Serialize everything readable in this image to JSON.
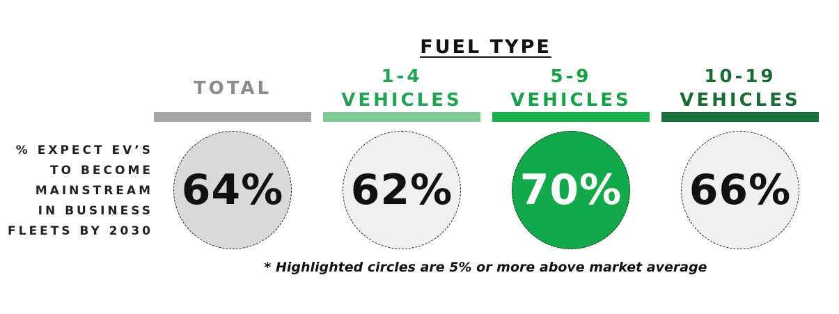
{
  "chart_data": {
    "type": "table",
    "title": "FUEL TYPE",
    "row_label": [
      "% EXPECT EV’S",
      "TO BECOME",
      "MAINSTREAM",
      "IN BUSINESS",
      "FLEETS BY 2030"
    ],
    "categories": [
      {
        "lines": [
          "TOTAL"
        ],
        "value": 64,
        "display": "64%",
        "highlighted": false,
        "color": "#a6a6a6",
        "text_color": "#8c8c8c",
        "circle_fill": "#d9d9d9",
        "value_color": "#111111"
      },
      {
        "lines": [
          "1-4",
          "VEHICLES"
        ],
        "value": 62,
        "display": "62%",
        "highlighted": false,
        "color": "#7dcc94",
        "text_color": "#22a352",
        "circle_fill": "#f0f0f0",
        "value_color": "#111111"
      },
      {
        "lines": [
          "5-9",
          "VEHICLES"
        ],
        "value": 70,
        "display": "70%",
        "highlighted": true,
        "color": "#1dae4e",
        "text_color": "#17a047",
        "circle_fill": "#13a84a",
        "value_color": "#ffffff"
      },
      {
        "lines": [
          "10-19",
          "VEHICLES"
        ],
        "value": 66,
        "display": "66%",
        "highlighted": false,
        "color": "#16713a",
        "text_color": "#1b6a36",
        "circle_fill": "#f0f0f0",
        "value_color": "#111111"
      }
    ],
    "footnote": "* Highlighted circles are 5% or more above market average"
  }
}
